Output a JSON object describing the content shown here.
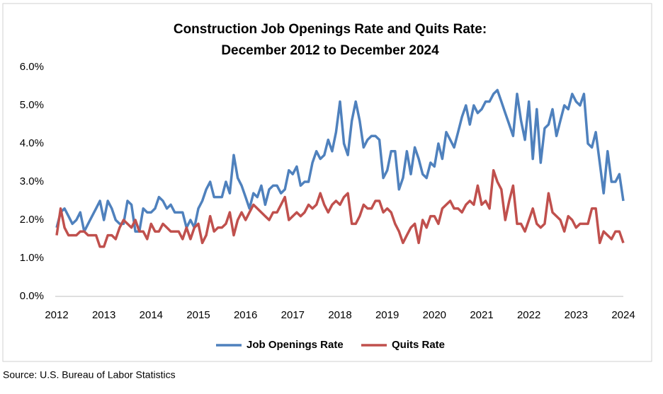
{
  "chart_data": {
    "type": "line",
    "title": "Construction Job Openings Rate and Quits Rate:",
    "subtitle": "December 2012 to December 2024",
    "source": "Source: U.S. Bureau of Labor Statistics",
    "categories": [
      "2012",
      null,
      null,
      null,
      null,
      null,
      null,
      null,
      null,
      null,
      null,
      null,
      "2013",
      null,
      null,
      null,
      null,
      null,
      null,
      null,
      null,
      null,
      null,
      null,
      "2014",
      null,
      null,
      null,
      null,
      null,
      null,
      null,
      null,
      null,
      null,
      null,
      "2015",
      null,
      null,
      null,
      null,
      null,
      null,
      null,
      null,
      null,
      null,
      null,
      "2016",
      null,
      null,
      null,
      null,
      null,
      null,
      null,
      null,
      null,
      null,
      null,
      "2017",
      null,
      null,
      null,
      null,
      null,
      null,
      null,
      null,
      null,
      null,
      null,
      "2018",
      null,
      null,
      null,
      null,
      null,
      null,
      null,
      null,
      null,
      null,
      null,
      "2019",
      null,
      null,
      null,
      null,
      null,
      null,
      null,
      null,
      null,
      null,
      null,
      "2020",
      null,
      null,
      null,
      null,
      null,
      null,
      null,
      null,
      null,
      null,
      null,
      "2021",
      null,
      null,
      null,
      null,
      null,
      null,
      null,
      null,
      null,
      null,
      null,
      "2022",
      null,
      null,
      null,
      null,
      null,
      null,
      null,
      null,
      null,
      null,
      null,
      "2023",
      null,
      null,
      null,
      null,
      null,
      null,
      null,
      null,
      null,
      null,
      null,
      "2024"
    ],
    "series": [
      {
        "name": "Job Openings Rate",
        "color": "#4f81bd",
        "values": [
          1.8,
          2.2,
          2.3,
          2.1,
          1.9,
          2.0,
          2.2,
          1.7,
          1.9,
          2.1,
          2.3,
          2.5,
          2.0,
          2.5,
          2.3,
          2.0,
          1.9,
          1.9,
          2.5,
          2.4,
          1.7,
          1.7,
          2.3,
          2.2,
          2.2,
          2.3,
          2.6,
          2.5,
          2.3,
          2.4,
          2.2,
          2.2,
          2.2,
          1.8,
          2.0,
          1.8,
          2.3,
          2.5,
          2.8,
          3.0,
          2.6,
          2.6,
          2.6,
          3.0,
          2.7,
          3.7,
          3.1,
          2.9,
          2.6,
          2.3,
          2.7,
          2.6,
          2.9,
          2.4,
          2.8,
          2.9,
          2.9,
          2.7,
          2.8,
          3.3,
          3.2,
          3.4,
          2.9,
          3.0,
          3.0,
          3.5,
          3.8,
          3.6,
          3.7,
          4.1,
          3.8,
          4.3,
          5.1,
          4.0,
          3.7,
          4.6,
          5.1,
          4.6,
          3.9,
          4.1,
          4.2,
          4.2,
          4.1,
          3.1,
          3.3,
          3.8,
          3.8,
          2.8,
          3.1,
          3.8,
          3.2,
          3.9,
          3.6,
          3.2,
          3.1,
          3.5,
          3.4,
          4.0,
          3.6,
          4.3,
          4.1,
          3.9,
          4.3,
          4.7,
          5.0,
          4.5,
          5.0,
          4.8,
          4.9,
          5.1,
          5.1,
          5.3,
          5.4,
          5.1,
          4.8,
          4.5,
          4.2,
          5.3,
          4.6,
          4.1,
          5.1,
          3.6,
          4.9,
          3.5,
          4.4,
          4.5,
          4.9,
          4.2,
          4.6,
          5.0,
          4.9,
          5.3,
          5.1,
          5.0,
          5.3,
          4.0,
          3.9,
          4.3,
          3.5,
          2.7,
          3.8,
          3.0,
          3.0,
          3.2,
          2.5
        ]
      },
      {
        "name": "Quits Rate",
        "color": "#c0504d",
        "values": [
          1.6,
          2.3,
          1.8,
          1.6,
          1.6,
          1.6,
          1.7,
          1.7,
          1.6,
          1.6,
          1.6,
          1.3,
          1.3,
          1.6,
          1.6,
          1.5,
          1.8,
          2.0,
          1.9,
          1.8,
          2.0,
          1.7,
          1.7,
          1.5,
          1.9,
          1.7,
          1.7,
          1.9,
          1.8,
          1.7,
          1.7,
          1.7,
          1.5,
          1.8,
          1.5,
          1.8,
          1.9,
          1.4,
          1.6,
          2.1,
          1.7,
          1.8,
          1.8,
          1.9,
          2.2,
          1.6,
          2.0,
          2.2,
          2.0,
          2.2,
          2.4,
          2.3,
          2.2,
          2.1,
          2.0,
          2.2,
          2.2,
          2.4,
          2.6,
          2.0,
          2.1,
          2.2,
          2.1,
          2.2,
          2.4,
          2.3,
          2.4,
          2.7,
          2.4,
          2.2,
          2.4,
          2.5,
          2.4,
          2.6,
          2.7,
          1.9,
          1.9,
          2.1,
          2.4,
          2.3,
          2.3,
          2.5,
          2.5,
          2.2,
          2.3,
          2.2,
          1.9,
          1.7,
          1.4,
          1.6,
          1.8,
          1.9,
          1.4,
          2.0,
          1.8,
          2.1,
          2.1,
          1.9,
          2.3,
          2.4,
          2.5,
          2.3,
          2.3,
          2.2,
          2.4,
          2.5,
          2.4,
          2.9,
          2.4,
          2.5,
          2.3,
          3.3,
          3.0,
          2.8,
          2.0,
          2.5,
          2.9,
          1.9,
          1.9,
          1.7,
          2.0,
          2.3,
          1.9,
          1.8,
          1.9,
          2.7,
          2.2,
          2.1,
          2.0,
          1.7,
          2.1,
          2.0,
          1.8,
          1.9,
          1.9,
          1.9,
          2.3,
          2.3,
          1.4,
          1.7,
          1.6,
          1.5,
          1.7,
          1.7,
          1.4
        ]
      }
    ],
    "ylim": [
      0,
      6
    ],
    "yticks": [
      {
        "value": 0,
        "label": "0.0%"
      },
      {
        "value": 1,
        "label": "1.0%"
      },
      {
        "value": 2,
        "label": "2.0%"
      },
      {
        "value": 3,
        "label": "3.0%"
      },
      {
        "value": 4,
        "label": "4.0%"
      },
      {
        "value": 5,
        "label": "5.0%"
      },
      {
        "value": 6,
        "label": "6.0%"
      }
    ],
    "grid": false,
    "legend": "bottom"
  }
}
